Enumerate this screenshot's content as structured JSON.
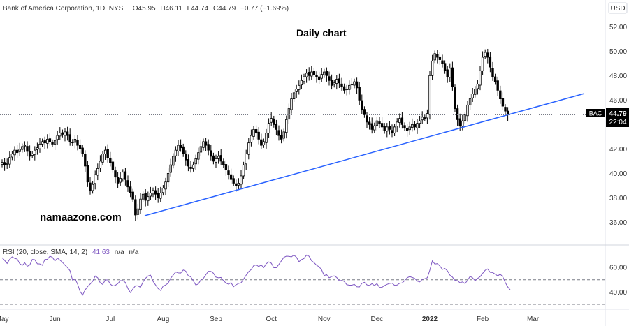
{
  "header": {
    "symbol_line": "Bank of America Corporation, 1D, NYSE",
    "o_label": "O",
    "o_value": "45.95",
    "h_label": "H",
    "h_value": "46.11",
    "l_label": "L",
    "l_value": "44.74",
    "c_label": "C",
    "c_value": "44.79",
    "change": "−0.77 (−1.69%)",
    "currency": "USD"
  },
  "annotations": {
    "title": "Daily chart",
    "watermark": "namaazone.com"
  },
  "price_tag": {
    "symbol": "BAC",
    "price": "44.79",
    "countdown": "22:04"
  },
  "rsi_legend": {
    "label": "RSI (20, close, SMA, 14, 2)",
    "value": "41.63",
    "na1": "n/a",
    "na2": "n/a"
  },
  "colors": {
    "up": "#ffffff",
    "down": "#000000",
    "trendline": "#2962ff",
    "rsi": "#7e57c2",
    "text": "#333333"
  },
  "chart_data": [
    {
      "type": "candlestick",
      "series_name": "BAC",
      "y_ticks": [
        36,
        38,
        40,
        42,
        44,
        46,
        48,
        50,
        52
      ],
      "y_tick_labels": [
        "36.00",
        "38.00",
        "40.00",
        "42.00",
        "44.00",
        "46.00",
        "48.00",
        "50.00",
        "52.00"
      ],
      "ylim": [
        35.0,
        53.5
      ],
      "x_labels": [
        "May",
        "Jun",
        "Jul",
        "Aug",
        "Sep",
        "Oct",
        "Nov",
        "Dec",
        "2022",
        "Feb",
        "Mar"
      ],
      "x_label_index": [
        0,
        21,
        43,
        64,
        85,
        107,
        128,
        149,
        170,
        191,
        211
      ],
      "closes": [
        40.9,
        40.7,
        40.8,
        41.3,
        41.6,
        41.9,
        41.7,
        42.0,
        42.2,
        42.3,
        41.8,
        41.4,
        41.6,
        41.9,
        42.1,
        42.4,
        42.6,
        42.5,
        42.8,
        42.6,
        42.4,
        42.7,
        43.1,
        43.3,
        43.2,
        43.4,
        43.1,
        42.6,
        42.5,
        42.8,
        42.3,
        42.0,
        41.6,
        40.6,
        39.3,
        38.6,
        39.1,
        39.9,
        40.4,
        41.0,
        41.6,
        41.9,
        41.3,
        40.9,
        40.3,
        39.7,
        39.2,
        39.6,
        40.1,
        39.5,
        38.9,
        38.4,
        37.9,
        36.6,
        37.1,
        37.9,
        38.3,
        37.8,
        38.1,
        38.4,
        38.6,
        38.3,
        38.0,
        38.4,
        38.8,
        39.3,
        40.0,
        40.7,
        41.4,
        41.9,
        42.3,
        42.1,
        41.6,
        41.1,
        40.6,
        40.4,
        40.7,
        41.2,
        41.7,
        42.2,
        42.6,
        42.3,
        41.9,
        41.4,
        41.0,
        41.2,
        41.4,
        41.0,
        40.7,
        40.3,
        39.9,
        39.5,
        39.2,
        39.0,
        39.2,
        39.8,
        40.7,
        41.6,
        42.5,
        43.1,
        43.6,
        43.3,
        42.8,
        42.3,
        42.6,
        43.3,
        44.1,
        44.5,
        44.0,
        43.6,
        43.1,
        42.8,
        43.4,
        44.4,
        45.3,
        46.1,
        46.6,
        46.9,
        47.2,
        47.6,
        47.9,
        48.2,
        48.0,
        48.3,
        48.1,
        47.9,
        47.7,
        48.1,
        48.3,
        48.0,
        47.6,
        47.2,
        47.4,
        47.7,
        47.4,
        47.1,
        46.8,
        46.9,
        47.2,
        47.3,
        47.5,
        47.0,
        46.0,
        45.2,
        44.8,
        44.2,
        44.0,
        43.6,
        43.9,
        44.3,
        44.1,
        43.8,
        43.5,
        43.8,
        43.6,
        43.3,
        43.8,
        44.2,
        44.5,
        44.0,
        43.7,
        43.5,
        43.8,
        44.0,
        43.8,
        44.1,
        44.3,
        44.6,
        44.5,
        44.9,
        48.0,
        49.2,
        49.8,
        49.5,
        49.3,
        49.0,
        48.4,
        47.9,
        48.6,
        47.1,
        45.3,
        44.4,
        43.9,
        44.3,
        44.8,
        45.6,
        46.1,
        46.5,
        46.9,
        47.3,
        48.4,
        49.5,
        49.9,
        49.5,
        48.7,
        47.9,
        47.5,
        46.8,
        46.1,
        45.5,
        45.1,
        44.79
      ]
    },
    {
      "type": "line",
      "series_name": "RSI (20, close, SMA, 14, 2)",
      "y_ticks": [
        40,
        60
      ],
      "y_tick_labels": [
        "40.00",
        "60.00"
      ],
      "band": [
        30,
        50,
        70
      ],
      "ylim": [
        26,
        76
      ],
      "values": [
        68.0,
        65.8,
        63.3,
        66.6,
        68.6,
        67.4,
        66.9,
        63.1,
        61.7,
        63.8,
        61.0,
        62.0,
        66.5,
        66.3,
        63.0,
        62.9,
        61.8,
        66.5,
        66.6,
        69.2,
        68.2,
        65.3,
        67.6,
        66.0,
        64.2,
        61.9,
        59.9,
        57.3,
        49.7,
        50.9,
        46.5,
        40.5,
        37.6,
        41.7,
        44.5,
        46.5,
        48.7,
        53.1,
        51.7,
        47.6,
        46.2,
        49.8,
        49.9,
        46.5,
        44.9,
        45.5,
        46.9,
        49.3,
        49.3,
        47.8,
        42.9,
        39.6,
        42.6,
        45.1,
        45.1,
        43.8,
        48.2,
        51.2,
        53.1,
        53.8,
        48.7,
        45.8,
        42.9,
        41.3,
        44.8,
        45.8,
        47.3,
        51.2,
        53.9,
        56.4,
        55.6,
        55.5,
        58.0,
        57.0,
        53.3,
        52.4,
        49.1,
        45.8,
        46.6,
        49.9,
        51.1,
        54.2,
        56.9,
        56.8,
        55.4,
        52.2,
        51.6,
        51.9,
        49.3,
        47.3,
        46.4,
        47.7,
        44.4,
        45.9,
        47.0,
        47.6,
        50.6,
        53.8,
        56.6,
        58.3,
        61.5,
        62.1,
        60.8,
        62.0,
        59.9,
        63.1,
        64.5,
        63.5,
        59.8,
        59.8,
        62.5,
        65.4,
        68.2,
        69.2,
        69.0,
        68.6,
        70.1,
        68.3,
        64.7,
        66.4,
        67.3,
        70.1,
        69.1,
        65.5,
        63.9,
        61.8,
        60.6,
        58.1,
        53.5,
        54.1,
        51.6,
        52.7,
        53.2,
        51.9,
        49.2,
        49.5,
        48.6,
        46.0,
        45.6,
        45.6,
        46.3,
        44.3,
        44.1,
        47.1,
        48.0,
        45.9,
        45.4,
        46.8,
        45.3,
        46.9,
        43.8,
        43.9,
        45.3,
        46.3,
        47.0,
        47.3,
        45.5,
        45.7,
        47.2,
        47.4,
        49.3,
        51.7,
        52.6,
        51.9,
        51.1,
        48.9,
        48.3,
        50.3,
        50.9,
        51.6,
        57.8,
        65.4,
        62.8,
        63.1,
        61.2,
        58.4,
        59.2,
        57.3,
        53.8,
        52.2,
        49.6,
        49.2,
        47.6,
        48.3,
        46.9,
        49.6,
        52.8,
        51.6,
        49.2,
        51.1,
        52.6,
        55.2,
        57.7,
        58.8,
        56.0,
        55.9,
        54.5,
        53.2,
        54.6,
        52.4,
        47.8,
        44.1,
        41.63
      ]
    }
  ]
}
